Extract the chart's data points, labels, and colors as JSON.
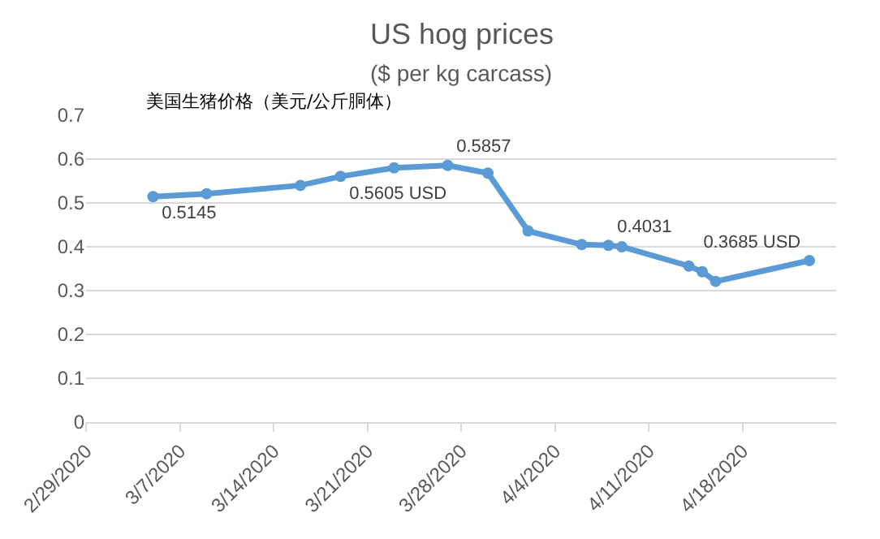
{
  "chart_data": {
    "type": "line",
    "title": "US hog prices",
    "subtitle": "($ per kg carcass)",
    "annotations": [
      "美国生猪价格（美元/公斤胴体）"
    ],
    "x": [
      "2020-03-05",
      "2020-03-09",
      "2020-03-16",
      "2020-03-19",
      "2020-03-23",
      "2020-03-27",
      "2020-03-30",
      "2020-04-02",
      "2020-04-06",
      "2020-04-08",
      "2020-04-09",
      "2020-04-14",
      "2020-04-15",
      "2020-04-16",
      "2020-04-23"
    ],
    "series": [
      {
        "color": "#5b9bd5",
        "values": [
          0.5145,
          0.521,
          0.54,
          0.5605,
          0.58,
          0.5857,
          0.568,
          0.436,
          0.405,
          0.4031,
          0.4,
          0.356,
          0.343,
          0.321,
          0.3685
        ],
        "value_labels": [
          "0.5145",
          null,
          null,
          "0.5605 USD",
          null,
          "0.5857",
          null,
          null,
          null,
          "0.4031",
          null,
          null,
          null,
          null,
          "0.3685 USD"
        ]
      }
    ],
    "xlim": [
      "2020-02-29",
      "2020-04-25"
    ],
    "xticks": [
      {
        "value": "2020-02-29",
        "label": "2/29/2020"
      },
      {
        "value": "2020-03-07",
        "label": "3/7/2020"
      },
      {
        "value": "2020-03-14",
        "label": "3/14/2020"
      },
      {
        "value": "2020-03-21",
        "label": "3/21/2020"
      },
      {
        "value": "2020-03-28",
        "label": "3/28/2020"
      },
      {
        "value": "2020-04-04",
        "label": "4/4/2020"
      },
      {
        "value": "2020-04-11",
        "label": "4/11/2020"
      },
      {
        "value": "2020-04-18",
        "label": "4/18/2020"
      }
    ],
    "ylim": [
      0,
      0.7
    ],
    "yticks": [
      0,
      0.1,
      0.2,
      0.3,
      0.4,
      0.5,
      0.6,
      0.7
    ],
    "grid": "y",
    "legend": false,
    "marker": "circle",
    "line_style": "solid"
  }
}
